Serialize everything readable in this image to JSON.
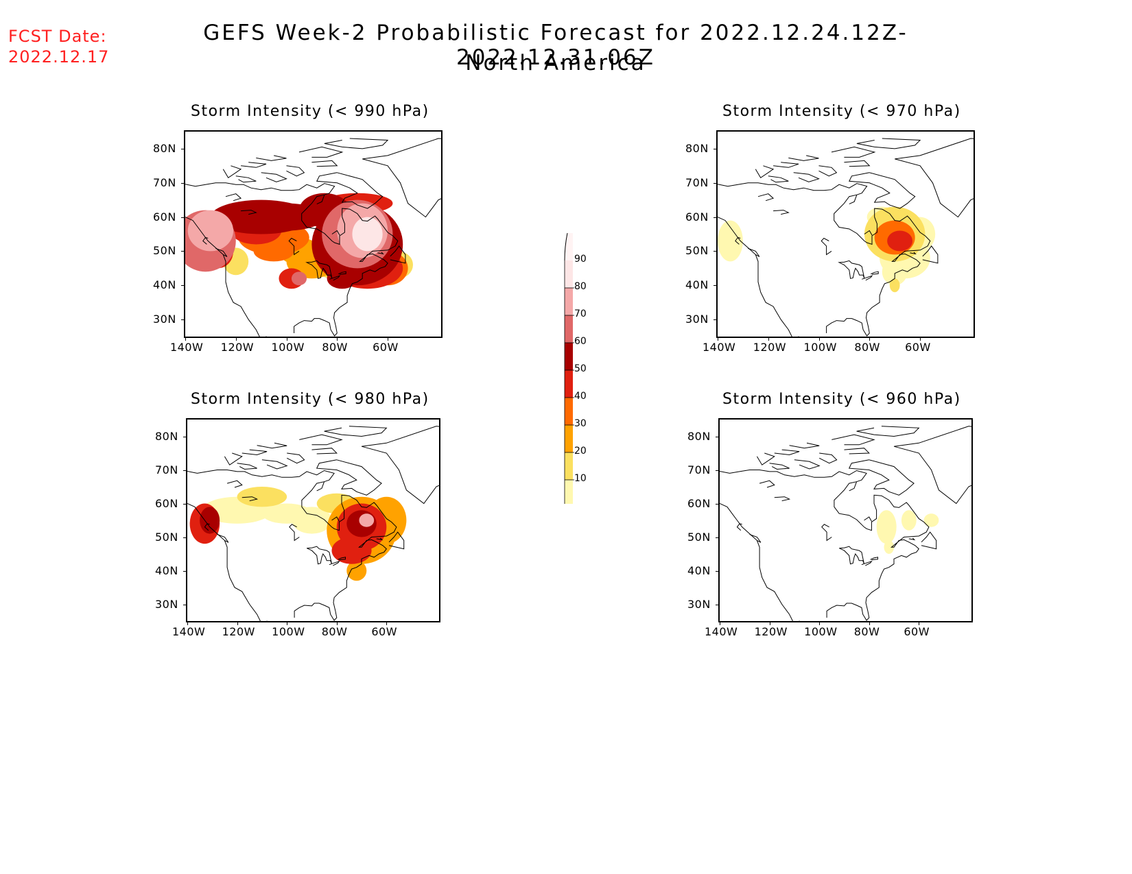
{
  "fcst_date": {
    "label": "FCST Date:",
    "value": "2022.12.17"
  },
  "title": {
    "line1": "GEFS Week-2 Probabilistic Forecast for 2022.12.24.12Z-2022.12.31.06Z",
    "line2": "North America"
  },
  "lat_labels": [
    "80N",
    "70N",
    "60N",
    "50N",
    "40N",
    "30N"
  ],
  "lon_labels": [
    "140W",
    "120W",
    "100W",
    "80W",
    "60W"
  ],
  "panels": [
    {
      "id": "p990",
      "title": "Storm Intensity (< 990 hPa)",
      "level": "high"
    },
    {
      "id": "p970",
      "title": "Storm Intensity (< 970 hPa)",
      "level": "mid"
    },
    {
      "id": "p980",
      "title": "Storm Intensity (< 980 hPa)",
      "level": "midhigh"
    },
    {
      "id": "p960",
      "title": "Storm Intensity (< 960 hPa)",
      "level": "low"
    }
  ],
  "legend": {
    "labels": [
      "90",
      "80",
      "70",
      "60",
      "50",
      "40",
      "30",
      "20",
      "10"
    ],
    "colors": [
      "#fde6e6",
      "#f4a8a8",
      "#e06868",
      "#a80000",
      "#e02010",
      "#ff6a00",
      "#ffa200",
      "#fbe060",
      "#fff8b0"
    ]
  }
}
